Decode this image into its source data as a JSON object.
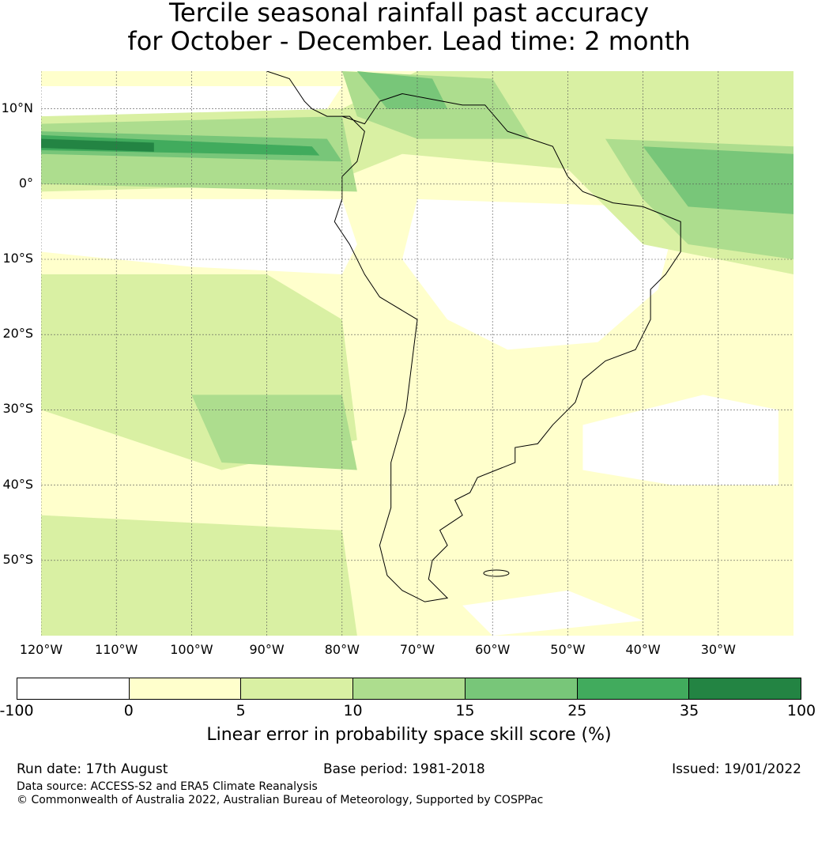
{
  "title_line1": "Tercile seasonal rainfall past accuracy",
  "title_line2": "for October - December. Lead time: 2 month",
  "map": {
    "lat_labels": [
      "10°N",
      "0°",
      "10°S",
      "20°S",
      "30°S",
      "40°S",
      "50°S"
    ],
    "lon_labels": [
      "120°W",
      "110°W",
      "100°W",
      "90°W",
      "80°W",
      "70°W",
      "60°W",
      "50°W",
      "40°W",
      "30°W"
    ],
    "lat_values": [
      10,
      0,
      -10,
      -20,
      -30,
      -40,
      -50
    ],
    "lon_values": [
      -120,
      -110,
      -100,
      -90,
      -80,
      -70,
      -60,
      -50,
      -40,
      -30
    ],
    "lon_range": [
      -120,
      -20
    ],
    "lat_range": [
      -60,
      15
    ],
    "gridlines": true
  },
  "colorbar": {
    "ticks": [
      "-100",
      "0",
      "5",
      "10",
      "15",
      "25",
      "35",
      "100"
    ],
    "colors": [
      "#ffffff",
      "#ffffcc",
      "#d9f0a3",
      "#addd8e",
      "#78c679",
      "#41ab5d",
      "#238443"
    ],
    "label": "Linear error in probability space skill score (%)"
  },
  "footer": {
    "run_date": "Run date: 17th August",
    "base_period": "Base period: 1981-2018",
    "issued": "Issued: 19/01/2022",
    "data_source": "Data source: ACCESS-S2 and ERA5 Climate Reanalysis",
    "copyright": "© Commonwealth of Australia 2022, Australian Bureau of Meteorology, Supported by COSPPac"
  }
}
